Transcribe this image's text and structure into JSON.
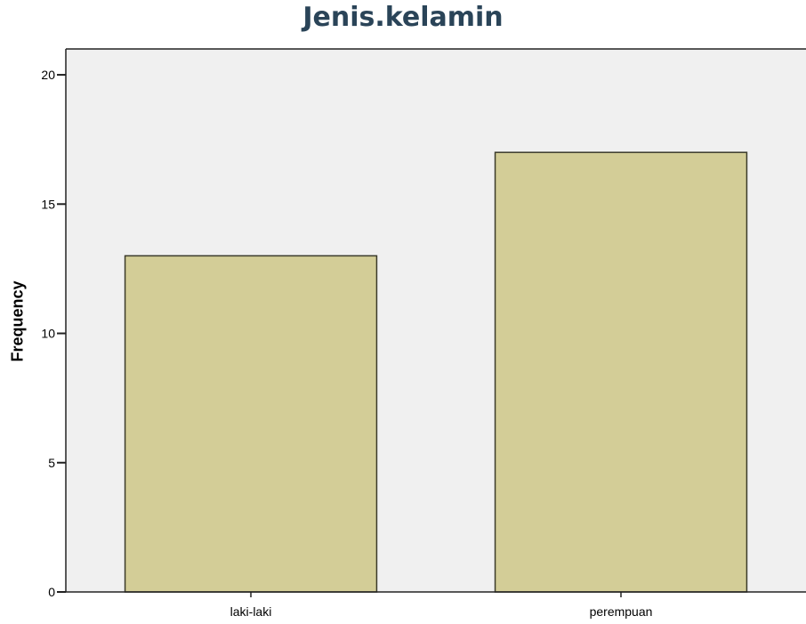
{
  "chart_data": {
    "type": "bar",
    "title": "Jenis.kelamin",
    "xlabel": "",
    "ylabel": "Frequency",
    "categories": [
      "laki-laki",
      "perempuan"
    ],
    "values": [
      13,
      17
    ],
    "ylim": [
      0,
      21
    ],
    "yticks": [
      "0",
      "5",
      "10",
      "15",
      "20"
    ],
    "grid": false,
    "legend": "none",
    "colors": {
      "bar_fill": "#d3cd97",
      "bar_stroke": "#3a3a2a",
      "plot_background": "#f0f0f0",
      "title": "#2a4458"
    }
  }
}
